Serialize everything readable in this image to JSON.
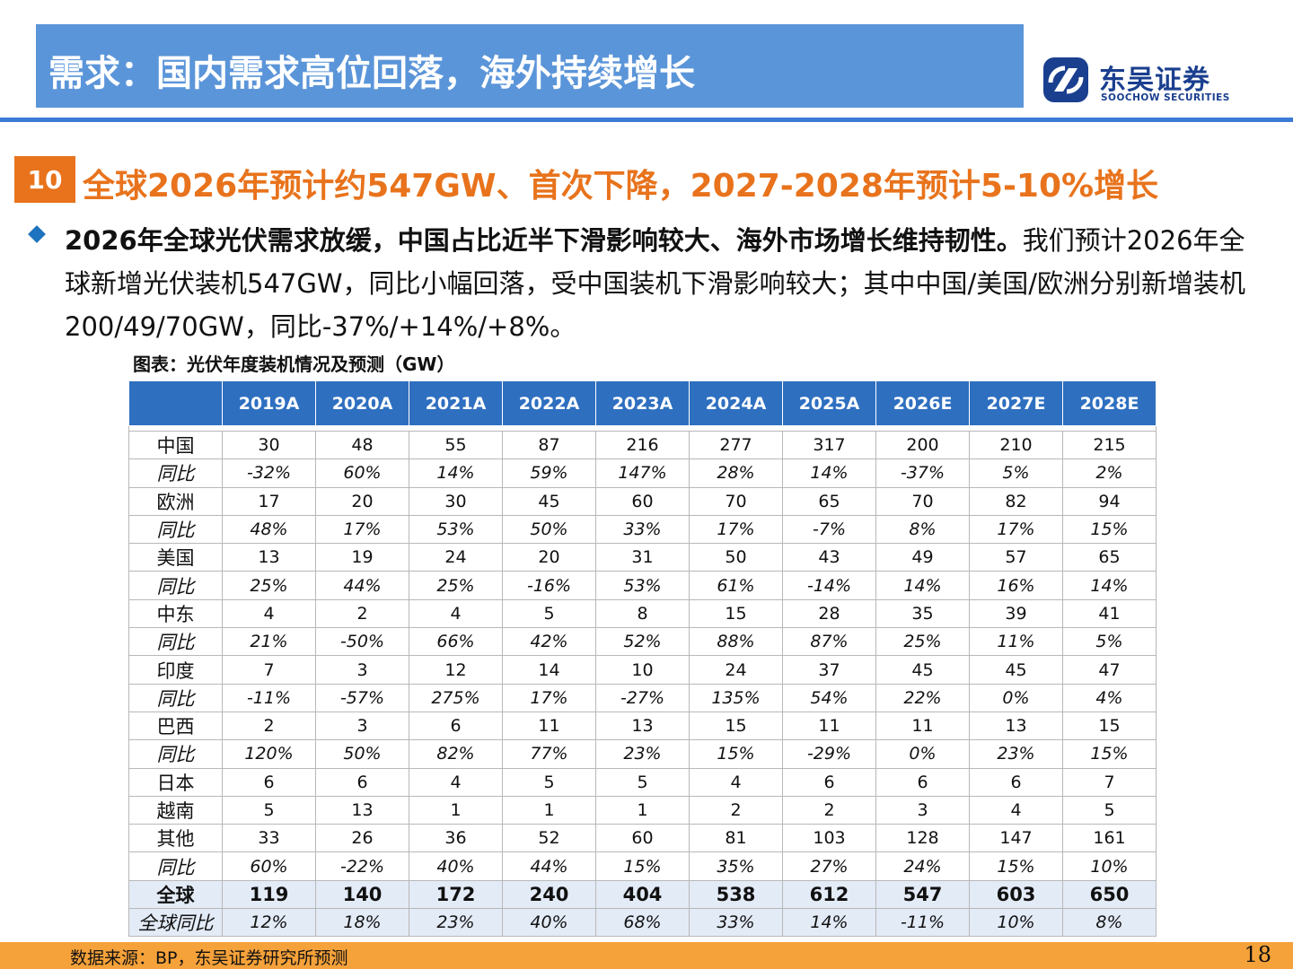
{
  "header": {
    "title": "需求：国内需求高位回落，海外持续增长",
    "logo_cn": "东吴证券",
    "logo_en": "SOOCHOW SECURITIES",
    "logo_icon": "soochow-logo-icon",
    "accent_color": "#5b95d9"
  },
  "section": {
    "number": "10",
    "title": "全球2026年预计约547GW、首次下降，2027-2028年预计5-10%增长",
    "color": "#e8731c"
  },
  "bullet": {
    "icon": "diamond-bullet-icon",
    "bold": "2026年全球光伏需求放缓，中国占比近半下滑影响较大、海外市场增长维持韧性。",
    "text": "我们预计2026年全球新增光伏装机547GW，同比小幅回落，受中国装机下滑影响较大；其中中国/美国/欧洲分别新增装机200/49/70GW，同比-37%/+14%/+8%。"
  },
  "table": {
    "caption": "图表：光伏年度装机情况及预测（GW）",
    "header_color": "#2e6fc0",
    "columns": [
      "2019A",
      "2020A",
      "2021A",
      "2022A",
      "2023A",
      "2024A",
      "2025A",
      "2026E",
      "2027E",
      "2028E"
    ],
    "rows": [
      {
        "label": "中国",
        "type": "value",
        "cells": [
          "30",
          "48",
          "55",
          "87",
          "216",
          "277",
          "317",
          "200",
          "210",
          "215"
        ]
      },
      {
        "label": "同比",
        "type": "yoy",
        "cells": [
          "-32%",
          "60%",
          "14%",
          "59%",
          "147%",
          "28%",
          "14%",
          "-37%",
          "5%",
          "2%"
        ]
      },
      {
        "label": "欧洲",
        "type": "value",
        "cells": [
          "17",
          "20",
          "30",
          "45",
          "60",
          "70",
          "65",
          "70",
          "82",
          "94"
        ]
      },
      {
        "label": "同比",
        "type": "yoy",
        "cells": [
          "48%",
          "17%",
          "53%",
          "50%",
          "33%",
          "17%",
          "-7%",
          "8%",
          "17%",
          "15%"
        ]
      },
      {
        "label": "美国",
        "type": "value",
        "cells": [
          "13",
          "19",
          "24",
          "20",
          "31",
          "50",
          "43",
          "49",
          "57",
          "65"
        ]
      },
      {
        "label": "同比",
        "type": "yoy",
        "cells": [
          "25%",
          "44%",
          "25%",
          "-16%",
          "53%",
          "61%",
          "-14%",
          "14%",
          "16%",
          "14%"
        ]
      },
      {
        "label": "中东",
        "type": "value",
        "cells": [
          "4",
          "2",
          "4",
          "5",
          "8",
          "15",
          "28",
          "35",
          "39",
          "41"
        ]
      },
      {
        "label": "同比",
        "type": "yoy",
        "cells": [
          "21%",
          "-50%",
          "66%",
          "42%",
          "52%",
          "88%",
          "87%",
          "25%",
          "11%",
          "5%"
        ]
      },
      {
        "label": "印度",
        "type": "value",
        "cells": [
          "7",
          "3",
          "12",
          "14",
          "10",
          "24",
          "37",
          "45",
          "45",
          "47"
        ]
      },
      {
        "label": "同比",
        "type": "yoy",
        "cells": [
          "-11%",
          "-57%",
          "275%",
          "17%",
          "-27%",
          "135%",
          "54%",
          "22%",
          "0%",
          "4%"
        ]
      },
      {
        "label": "巴西",
        "type": "value",
        "cells": [
          "2",
          "3",
          "6",
          "11",
          "13",
          "15",
          "11",
          "11",
          "13",
          "15"
        ]
      },
      {
        "label": "同比",
        "type": "yoy",
        "cells": [
          "120%",
          "50%",
          "82%",
          "77%",
          "23%",
          "15%",
          "-29%",
          "0%",
          "23%",
          "15%"
        ]
      },
      {
        "label": "日本",
        "type": "value",
        "cells": [
          "6",
          "6",
          "4",
          "5",
          "5",
          "4",
          "6",
          "6",
          "6",
          "7"
        ]
      },
      {
        "label": "越南",
        "type": "value",
        "cells": [
          "5",
          "13",
          "1",
          "1",
          "1",
          "2",
          "2",
          "3",
          "4",
          "5"
        ]
      },
      {
        "label": "其他",
        "type": "value",
        "cells": [
          "33",
          "26",
          "36",
          "52",
          "60",
          "81",
          "103",
          "128",
          "147",
          "161"
        ]
      },
      {
        "label": "同比",
        "type": "yoy",
        "cells": [
          "60%",
          "-22%",
          "40%",
          "44%",
          "15%",
          "35%",
          "27%",
          "24%",
          "15%",
          "10%"
        ]
      },
      {
        "label": "全球",
        "type": "total",
        "cells": [
          "119",
          "140",
          "172",
          "240",
          "404",
          "538",
          "612",
          "547",
          "603",
          "650"
        ]
      },
      {
        "label": "全球同比",
        "type": "totalyoy",
        "cells": [
          "12%",
          "18%",
          "23%",
          "40%",
          "68%",
          "33%",
          "14%",
          "-11%",
          "10%",
          "8%"
        ]
      }
    ]
  },
  "footer": {
    "source": "数据来源：BP，东吴证券研究所预测",
    "page": "18",
    "bar_color": "#f6a23a"
  }
}
